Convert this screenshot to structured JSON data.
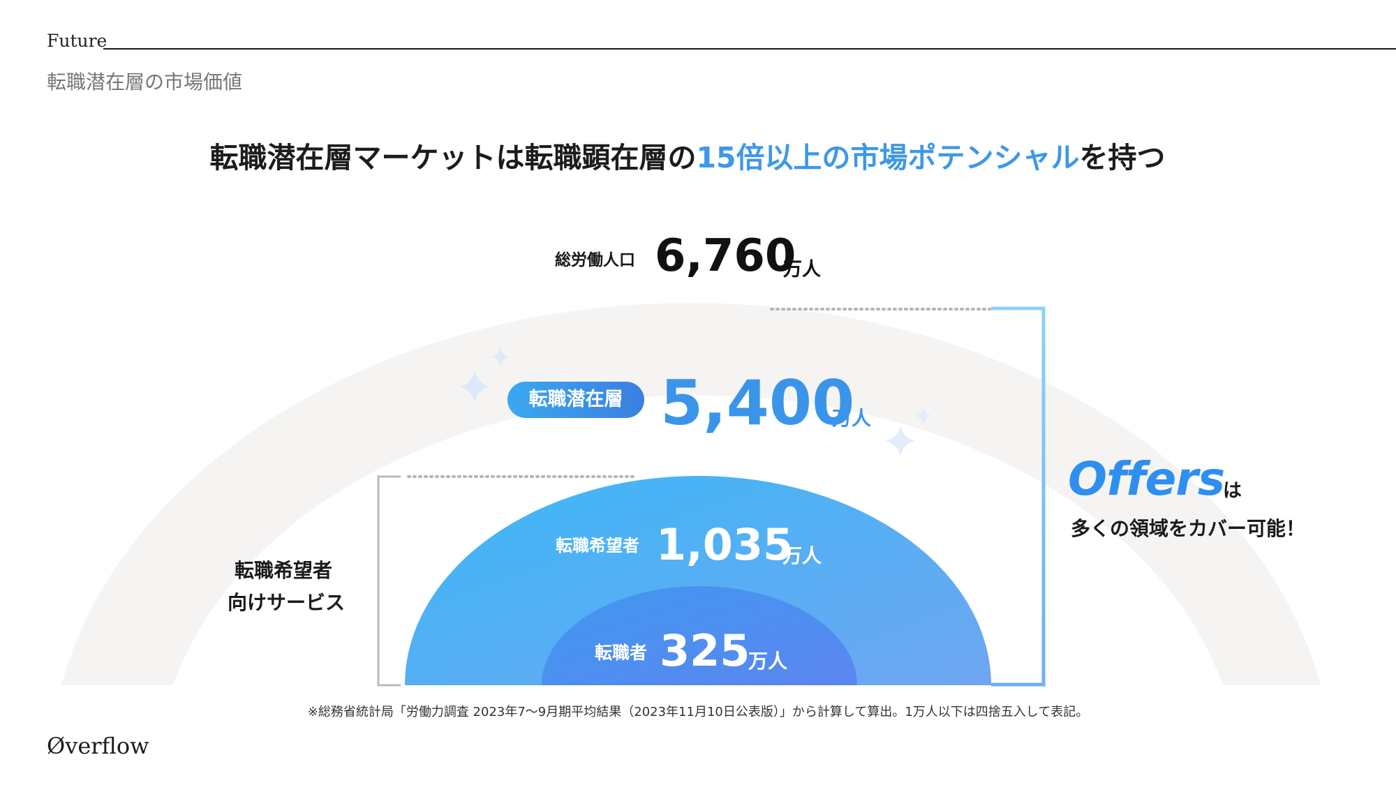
{
  "header": {
    "section_label": "Future",
    "subtitle": "転職潜在層の市場価値"
  },
  "headline": {
    "lead": "転職潜在層マーケットは転職顕在層の",
    "highlight": "15倍以上の市場ポテンシャル",
    "tail": "を持つ"
  },
  "tiers": {
    "total": {
      "label": "総労働人口",
      "value": "6,760",
      "unit": "万人"
    },
    "latent": {
      "label": "転職潜在層",
      "value": "5,400",
      "unit": "万人"
    },
    "hopeful": {
      "label": "転職希望者",
      "value": "1,035",
      "unit": "万人"
    },
    "changers": {
      "label": "転職者",
      "value": "325",
      "unit": "万人"
    }
  },
  "service": {
    "line1": "転職希望者",
    "line2": "向けサービス"
  },
  "offers": {
    "logo": "Offers",
    "particle": "は",
    "caption": "多くの領域をカバー可能！"
  },
  "footnote": "※総務省統計局「労働力調査 2023年7〜9月期平均結果（2023年11月10日公表版）」から計算して算出。1万人以下は四捨五入して表記。",
  "brand": "Øverflow",
  "colors": {
    "accent": "#3d98e8",
    "outer_band": "#f6f4f2",
    "inner_arch_start": "#3cb8f6",
    "inner_arch_end": "#6aa2f2",
    "core_arch": "#4f86f0",
    "bracket_blue": "#8cccf6",
    "bracket_gray": "#bbbbbb"
  }
}
